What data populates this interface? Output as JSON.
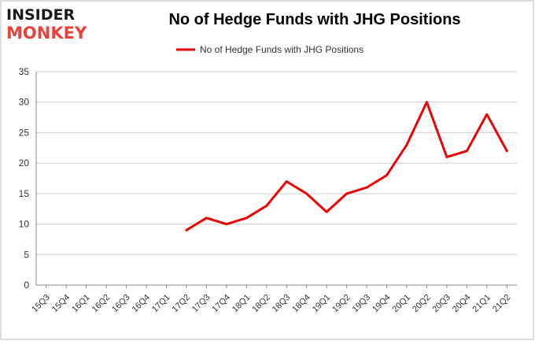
{
  "logo": {
    "line1": "INSIDER",
    "line2": "MONKEY"
  },
  "colors": {
    "series": "#ee0000",
    "grid": "#cccccc",
    "axis": "#888888",
    "logo_accent": "#e8423a"
  },
  "chart_data": {
    "type": "line",
    "title": "No of Hedge Funds with JHG Positions",
    "xlabel": "",
    "ylabel": "",
    "ylim": [
      0,
      35
    ],
    "yticks": [
      0,
      5,
      10,
      15,
      20,
      25,
      30,
      35
    ],
    "grid": true,
    "legend_position": "top",
    "categories": [
      "15Q3",
      "15Q4",
      "16Q1",
      "16Q2",
      "16Q3",
      "16Q4",
      "17Q1",
      "17Q2",
      "17Q3",
      "17Q4",
      "18Q1",
      "18Q2",
      "18Q3",
      "18Q4",
      "19Q1",
      "19Q2",
      "19Q3",
      "19Q4",
      "20Q1",
      "20Q2",
      "20Q3",
      "20Q4",
      "21Q1",
      "21Q2"
    ],
    "series": [
      {
        "name": "No of Hedge Funds with JHG Positions",
        "values": [
          null,
          null,
          null,
          null,
          null,
          null,
          null,
          9,
          11,
          10,
          11,
          13,
          17,
          15,
          12,
          15,
          16,
          18,
          23,
          30,
          21,
          22,
          28,
          22
        ]
      }
    ]
  }
}
